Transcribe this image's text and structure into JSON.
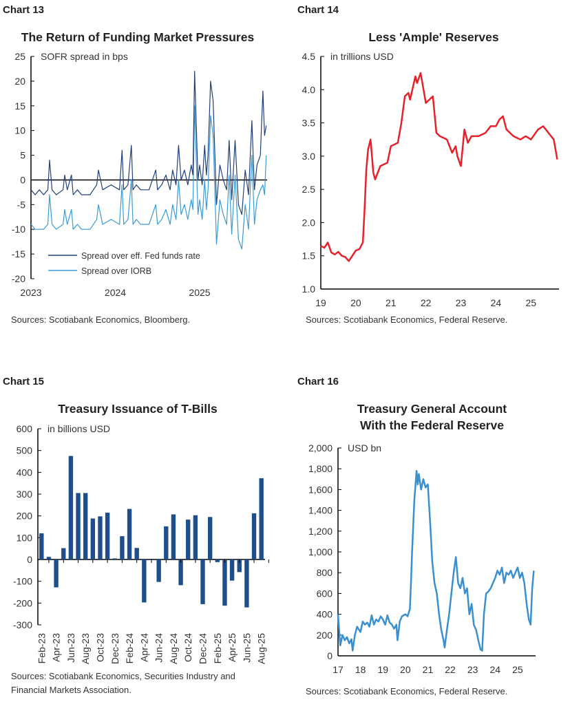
{
  "chart_data": [
    {
      "type": "line",
      "label": "Chart 13",
      "title": "The Return of Funding Market Pressures",
      "ylabel": "SOFR spread in bps",
      "ylim": [
        -20,
        25
      ],
      "yticks": [
        "25",
        "20",
        "15",
        "10",
        "5",
        "0",
        "-5",
        "-10",
        "-15",
        "-20"
      ],
      "xlim": [
        2023,
        2025.8
      ],
      "xticks": [
        "2023",
        "2024",
        "2025"
      ],
      "legend": "bottom-left",
      "source": "Sources: Scotiabank Economics,  Bloomberg.",
      "series": [
        {
          "name": "Spread over eff. Fed funds rate",
          "color": "#1f3f7a",
          "x": [
            2023.0,
            2023.05,
            2023.1,
            2023.15,
            2023.2,
            2023.22,
            2023.25,
            2023.3,
            2023.38,
            2023.4,
            2023.43,
            2023.48,
            2023.5,
            2023.55,
            2023.6,
            2023.7,
            2023.78,
            2023.8,
            2023.85,
            2023.95,
            2024.05,
            2024.08,
            2024.1,
            2024.15,
            2024.19,
            2024.21,
            2024.25,
            2024.3,
            2024.4,
            2024.48,
            2024.5,
            2024.55,
            2024.6,
            2024.65,
            2024.68,
            2024.72,
            2024.75,
            2024.78,
            2024.82,
            2024.86,
            2024.9,
            2024.92,
            2024.94,
            2024.98,
            2025.0,
            2025.03,
            2025.06,
            2025.08,
            2025.1,
            2025.13,
            2025.16,
            2025.2,
            2025.24,
            2025.28,
            2025.32,
            2025.35,
            2025.38,
            2025.42,
            2025.46,
            2025.5,
            2025.54,
            2025.58,
            2025.62,
            2025.65,
            2025.68,
            2025.72,
            2025.75,
            2025.77,
            2025.79
          ],
          "y": [
            -2,
            -3,
            -2,
            -3,
            -2,
            4,
            -2,
            -3,
            -2,
            1,
            -2,
            1,
            -3,
            -2,
            -3,
            -3,
            -1,
            2,
            -2,
            -1,
            -2,
            6,
            -2,
            -1,
            7,
            -2,
            -1,
            -2,
            -2,
            2,
            -2,
            -1,
            1,
            -2,
            2,
            -1,
            7,
            0,
            2,
            -1,
            3,
            1,
            22,
            0,
            3,
            -1,
            7,
            1,
            5,
            20,
            16,
            -5,
            3,
            0,
            -2,
            8,
            -4,
            8,
            -5,
            -7,
            2,
            -3,
            12,
            -2,
            3,
            5,
            18,
            9,
            11
          ]
        },
        {
          "name": "Spread over IORB",
          "color": "#3a9bd5",
          "x": [
            2023.0,
            2023.05,
            2023.1,
            2023.15,
            2023.2,
            2023.22,
            2023.25,
            2023.3,
            2023.38,
            2023.4,
            2023.43,
            2023.48,
            2023.5,
            2023.55,
            2023.6,
            2023.7,
            2023.78,
            2023.8,
            2023.85,
            2023.95,
            2024.05,
            2024.08,
            2024.1,
            2024.15,
            2024.19,
            2024.21,
            2024.25,
            2024.3,
            2024.4,
            2024.48,
            2024.5,
            2024.55,
            2024.6,
            2024.65,
            2024.68,
            2024.72,
            2024.75,
            2024.78,
            2024.82,
            2024.86,
            2024.9,
            2024.92,
            2024.94,
            2024.98,
            2025.0,
            2025.03,
            2025.06,
            2025.08,
            2025.1,
            2025.13,
            2025.16,
            2025.2,
            2025.24,
            2025.28,
            2025.32,
            2025.35,
            2025.38,
            2025.42,
            2025.46,
            2025.5,
            2025.54,
            2025.58,
            2025.62,
            2025.65,
            2025.68,
            2025.72,
            2025.75,
            2025.77,
            2025.79
          ],
          "y": [
            -9,
            -10,
            -10,
            -10,
            -9,
            -3,
            -9,
            -10,
            -9,
            -6,
            -9,
            -6,
            -10,
            -9,
            -10,
            -10,
            -8,
            -5,
            -9,
            -8,
            -9,
            -1,
            -9,
            -8,
            0,
            -9,
            -8,
            -9,
            -9,
            -5,
            -9,
            -8,
            -6,
            -9,
            -5,
            -8,
            0,
            -7,
            -5,
            -8,
            -4,
            -6,
            15,
            -7,
            -4,
            -8,
            0,
            -6,
            -2,
            13,
            9,
            -13,
            -4,
            -7,
            -9,
            1,
            -11,
            1,
            -12,
            -14,
            -5,
            -10,
            5,
            -9,
            -4,
            -2,
            -1,
            -3,
            5
          ]
        }
      ]
    },
    {
      "type": "line",
      "label": "Chart 14",
      "title": "Less 'Ample' Reserves",
      "ylabel": "in trillions USD",
      "ylim": [
        1.0,
        4.5
      ],
      "yticks": [
        "4.5",
        "4.0",
        "3.5",
        "3.0",
        "2.5",
        "2.0",
        "1.5",
        "1.0"
      ],
      "xlim": [
        2019,
        2025.8
      ],
      "xticks": [
        "19",
        "20",
        "21",
        "22",
        "23",
        "24",
        "25"
      ],
      "source": "Sources: Scotiabank Economics, Federal Reserve.",
      "series": [
        {
          "name": "Reserves",
          "color": "#e8202a",
          "x": [
            2019.0,
            2019.1,
            2019.2,
            2019.3,
            2019.4,
            2019.5,
            2019.6,
            2019.7,
            2019.8,
            2019.9,
            2020.0,
            2020.1,
            2020.2,
            2020.25,
            2020.3,
            2020.35,
            2020.42,
            2020.5,
            2020.55,
            2020.7,
            2020.9,
            2021.0,
            2021.2,
            2021.3,
            2021.4,
            2021.5,
            2021.55,
            2021.7,
            2021.75,
            2021.85,
            2022.0,
            2022.1,
            2022.2,
            2022.3,
            2022.4,
            2022.6,
            2022.75,
            2022.85,
            2022.9,
            2023.0,
            2023.1,
            2023.2,
            2023.3,
            2023.5,
            2023.7,
            2023.85,
            2024.0,
            2024.1,
            2024.2,
            2024.3,
            2024.5,
            2024.7,
            2024.85,
            2025.0,
            2025.2,
            2025.35,
            2025.5,
            2025.65,
            2025.75
          ],
          "y": [
            1.65,
            1.62,
            1.7,
            1.55,
            1.52,
            1.56,
            1.5,
            1.48,
            1.42,
            1.5,
            1.58,
            1.6,
            1.7,
            2.2,
            2.8,
            3.1,
            3.25,
            2.75,
            2.65,
            2.85,
            2.9,
            3.15,
            3.2,
            3.5,
            3.9,
            3.95,
            3.85,
            4.2,
            4.1,
            4.25,
            3.8,
            3.85,
            3.9,
            3.35,
            3.3,
            3.25,
            3.05,
            3.15,
            3.0,
            2.85,
            3.4,
            3.2,
            3.3,
            3.3,
            3.35,
            3.45,
            3.45,
            3.55,
            3.6,
            3.4,
            3.3,
            3.25,
            3.3,
            3.25,
            3.4,
            3.45,
            3.35,
            3.25,
            2.95
          ]
        }
      ]
    },
    {
      "type": "bar",
      "label": "Chart 15",
      "title": "Treasury Issuance of T-Bills",
      "ylabel": "in billions USD",
      "ylim": [
        -300,
        600
      ],
      "yticks": [
        "600",
        "500",
        "400",
        "300",
        "200",
        "100",
        "0",
        "-100",
        "-200",
        "-300"
      ],
      "color": "#1f4e8c",
      "source": "Sources: Scotiabank Economics, Securities Industry and Financial Markets Association.",
      "categories": [
        "Feb-23",
        "Mar-23",
        "Apr-23",
        "May-23",
        "Jun-23",
        "Jul-23",
        "Aug-23",
        "Sep-23",
        "Oct-23",
        "Nov-23",
        "Dec-23",
        "Jan-24",
        "Feb-24",
        "Mar-24",
        "Apr-24",
        "May-24",
        "Jun-24",
        "Jul-24",
        "Aug-24",
        "Sep-24",
        "Oct-24",
        "Nov-24",
        "Dec-24",
        "Jan-25",
        "Feb-25",
        "Mar-25",
        "Apr-25",
        "May-25",
        "Jun-25",
        "Jul-25",
        "Aug-25"
      ],
      "values": [
        120,
        12,
        -128,
        52,
        475,
        305,
        305,
        188,
        198,
        215,
        5,
        107,
        232,
        53,
        -197,
        0,
        -103,
        152,
        207,
        -118,
        183,
        203,
        -205,
        195,
        -12,
        -212,
        -97,
        -58,
        -220,
        212,
        373
      ],
      "xticks": [
        "Feb-23",
        "Apr-23",
        "Jun-23",
        "Aug-23",
        "Oct-23",
        "Dec-23",
        "Feb-24",
        "Apr-24",
        "Jun-24",
        "Aug-24",
        "Oct-24",
        "Dec-24",
        "Feb-25",
        "Apr-25",
        "Jun-25",
        "Aug-25"
      ]
    },
    {
      "type": "line",
      "label": "Chart 16",
      "title": "Treasury General Account With the Federal Reserve",
      "title_lines": [
        "Treasury General Account",
        "With the Federal Reserve"
      ],
      "ylabel": "USD bn",
      "ylim": [
        0,
        2000
      ],
      "yticks": [
        "2,000",
        "1,800",
        "1,600",
        "1,400",
        "1,200",
        "1,000",
        "800",
        "600",
        "400",
        "200",
        "0"
      ],
      "xlim": [
        2017,
        2025.8
      ],
      "xticks": [
        "17",
        "18",
        "19",
        "20",
        "21",
        "22",
        "23",
        "24",
        "25"
      ],
      "source": "Sources: Scotiabank Economics, Federal Reserve.",
      "series": [
        {
          "name": "TGA",
          "color": "#3a8fd0",
          "x": [
            2017.0,
            2017.05,
            2017.1,
            2017.2,
            2017.3,
            2017.4,
            2017.5,
            2017.6,
            2017.65,
            2017.75,
            2017.85,
            2018.0,
            2018.1,
            2018.2,
            2018.3,
            2018.4,
            2018.5,
            2018.6,
            2018.7,
            2018.8,
            2018.9,
            2019.0,
            2019.1,
            2019.2,
            2019.3,
            2019.4,
            2019.5,
            2019.6,
            2019.65,
            2019.75,
            2019.85,
            2020.0,
            2020.1,
            2020.2,
            2020.25,
            2020.3,
            2020.4,
            2020.5,
            2020.55,
            2020.6,
            2020.7,
            2020.8,
            2020.9,
            2021.0,
            2021.1,
            2021.2,
            2021.3,
            2021.4,
            2021.5,
            2021.6,
            2021.7,
            2021.75,
            2021.85,
            2021.95,
            2022.05,
            2022.15,
            2022.25,
            2022.35,
            2022.45,
            2022.55,
            2022.65,
            2022.75,
            2022.85,
            2022.95,
            2023.05,
            2023.15,
            2023.25,
            2023.35,
            2023.42,
            2023.5,
            2023.6,
            2023.7,
            2023.8,
            2023.9,
            2024.0,
            2024.1,
            2024.2,
            2024.3,
            2024.4,
            2024.5,
            2024.6,
            2024.7,
            2024.8,
            2024.9,
            2025.0,
            2025.1,
            2025.2,
            2025.3,
            2025.4,
            2025.5,
            2025.58,
            2025.65,
            2025.72
          ],
          "y": [
            400,
            250,
            100,
            200,
            150,
            180,
            120,
            160,
            50,
            200,
            280,
            230,
            330,
            300,
            320,
            280,
            390,
            300,
            350,
            330,
            380,
            350,
            300,
            390,
            320,
            300,
            260,
            300,
            150,
            330,
            380,
            400,
            380,
            450,
            700,
            1000,
            1500,
            1780,
            1650,
            1750,
            1600,
            1700,
            1620,
            1650,
            1300,
            900,
            700,
            600,
            400,
            250,
            150,
            80,
            250,
            400,
            600,
            800,
            950,
            700,
            650,
            750,
            600,
            650,
            400,
            500,
            300,
            250,
            150,
            60,
            50,
            400,
            600,
            620,
            650,
            700,
            750,
            820,
            780,
            850,
            700,
            800,
            780,
            820,
            750,
            800,
            850,
            750,
            800,
            700,
            500,
            350,
            300,
            650,
            820
          ]
        }
      ]
    }
  ]
}
